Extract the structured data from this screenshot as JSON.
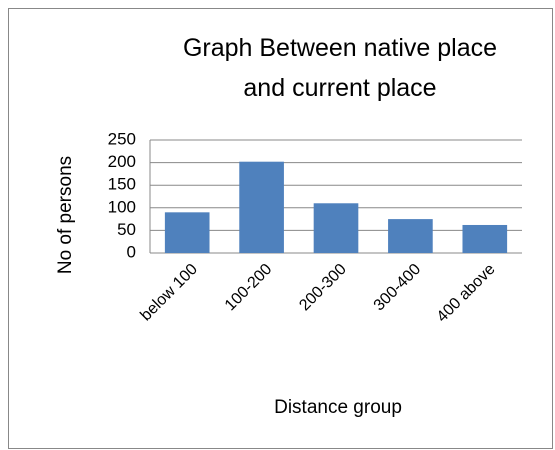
{
  "chart_data": {
    "type": "bar",
    "title": "Graph Between  native place and current place",
    "x_label": "Distance group",
    "y_label": "No of persons",
    "categories": [
      "below 100",
      "100-200",
      "200-300",
      "300-400",
      "400 above"
    ],
    "values": [
      90,
      202,
      110,
      75,
      62
    ],
    "color": "#4f81bd",
    "ylim": [
      0,
      250
    ],
    "yticks": [
      0,
      50,
      100,
      150,
      200,
      250
    ],
    "grid": true
  }
}
